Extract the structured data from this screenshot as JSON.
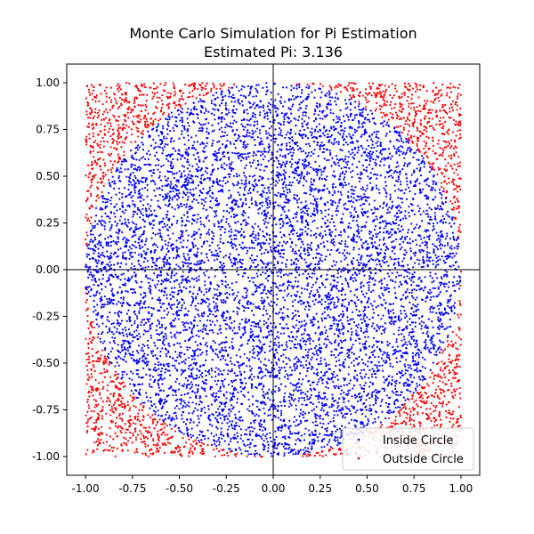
{
  "chart_data": {
    "type": "scatter",
    "title": "Monte Carlo Simulation for Pi Estimation",
    "subtitle": "Estimated Pi: 3.136",
    "estimated_pi": 3.136,
    "xlim": [
      -1.1,
      1.1
    ],
    "ylim": [
      -1.1,
      1.1
    ],
    "x_ticks": [
      "-1.00",
      "-0.75",
      "-0.50",
      "-0.25",
      "0.00",
      "0.25",
      "0.50",
      "0.75",
      "1.00"
    ],
    "y_ticks": [
      "-1.00",
      "-0.75",
      "-0.50",
      "-0.25",
      "0.00",
      "0.25",
      "0.50",
      "0.75",
      "1.00"
    ],
    "x_tick_values": [
      -1,
      -0.75,
      -0.5,
      -0.25,
      0,
      0.25,
      0.5,
      0.75,
      1
    ],
    "y_tick_values": [
      -1,
      -0.75,
      -0.5,
      -0.25,
      0,
      0.25,
      0.5,
      0.75,
      1
    ],
    "grid": false,
    "reference_lines": {
      "x": 0,
      "y": 0
    },
    "legend_position": "lower-right",
    "series": [
      {
        "name": "Inside Circle",
        "color": "#0000ff",
        "rule": "x^2 + y^2 <= 1"
      },
      {
        "name": "Outside Circle",
        "color": "#ff0000",
        "rule": "x^2 + y^2 > 1"
      }
    ],
    "sample_count": 10000,
    "sample_range": [
      -1,
      1
    ],
    "sample_distribution": "uniform"
  }
}
